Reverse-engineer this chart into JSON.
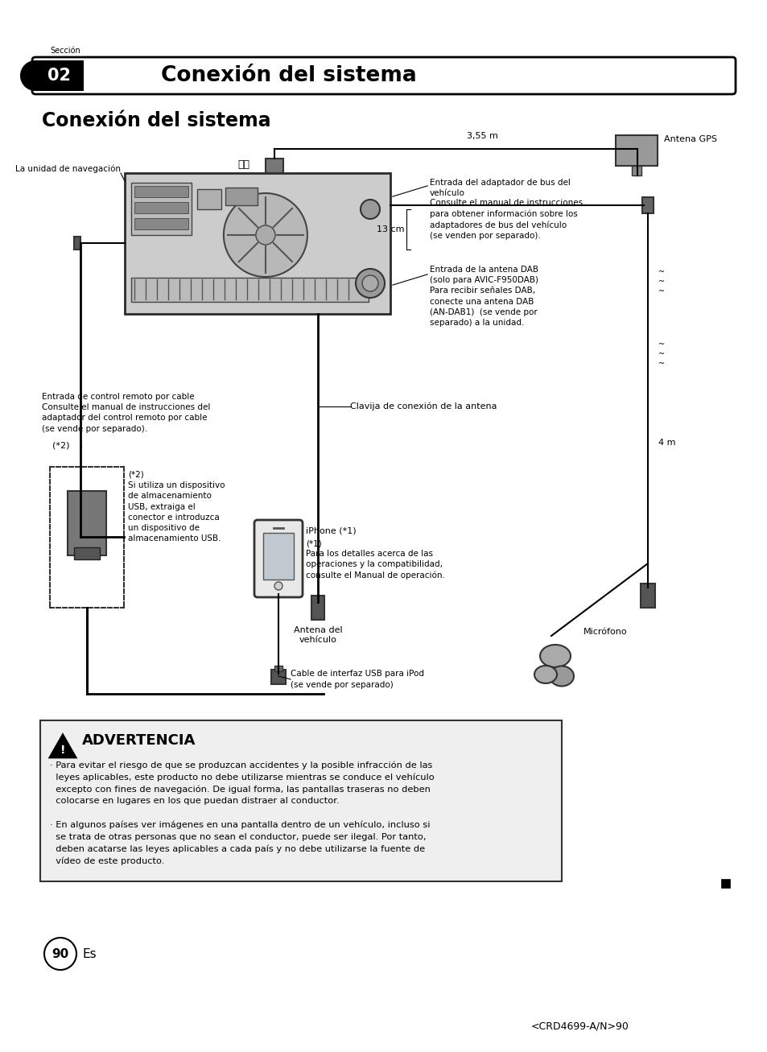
{
  "page_bg": "#ffffff",
  "header_section_label": "Sección",
  "header_number": "02",
  "header_title": "Conexión del sistema",
  "section_title": "Conexión del sistema",
  "warning_title": "ADVERTENCIA",
  "warning_text1": "· Para evitar el riesgo de que se produzcan accidentes y la posible infracción de las\n  leyes aplicables, este producto no debe utilizarse mientras se conduce el vehículo\n  excepto con fines de navegación. De igual forma, las pantallas traseras no deben\n  colocarse en lugares en los que puedan distraer al conductor.",
  "warning_text2": "· En algunos países ver imágenes en una pantalla dentro de un vehículo, incluso si\n  se trata de otras personas que no sean el conductor, puede ser ilegal. Por tanto,\n  deben acatarse las leyes aplicables a cada país y no debe utilizarse la fuente de\n  vídeo de este producto.",
  "page_number": "90",
  "page_label": "Es",
  "bottom_code": "<CRD4699-A/N>90",
  "label_gps": "Antena GPS",
  "label_nav": "La unidad de navegación",
  "label_355m": "3,55 m",
  "label_13cm": "13 cm",
  "label_4m": "4 m",
  "label_bus_entrada": "Entrada del adaptador de bus del\nvehículo",
  "label_bus_consulte": "Consulte el manual de instrucciones\npara obtener información sobre los\nadaptadores de bus del vehículo\n(se venden por separado).",
  "label_dab": "Entrada de la antena DAB\n(solo para AVIC-F950DAB)\nPara recibir señales DAB,\nconecte una antena DAB\n(AN-DAB1)  (se vende por\nseparado) a la unidad.",
  "label_clavija": "Clavija de conexión de la antena",
  "label_antena_vehiculo": "Antena del\nvehículo",
  "label_remoto": "Entrada de control remoto por cable\nConsulte el manual de instrucciones del\nadaptador del control remoto por cable\n(se vende por separado).",
  "label_usb_note1": "(*2)",
  "label_usb_note2": "(*2)\nSi utiliza un dispositivo\nde almacenamiento\nUSB, extraiga el\nconector e introduzca\nun dispositivo de\nalmacenamiento USB.",
  "label_iphone": "iPhone (*1)",
  "label_iphone_note": "(*1)\nPara los detalles acerca de las\noperaciones y la compatibilidad,\nconsulte el Manual de operación.",
  "label_microfono": "Micrófono",
  "label_cable_usb": "Cable de interfaz USB para iPod\n(se vende por separado)"
}
